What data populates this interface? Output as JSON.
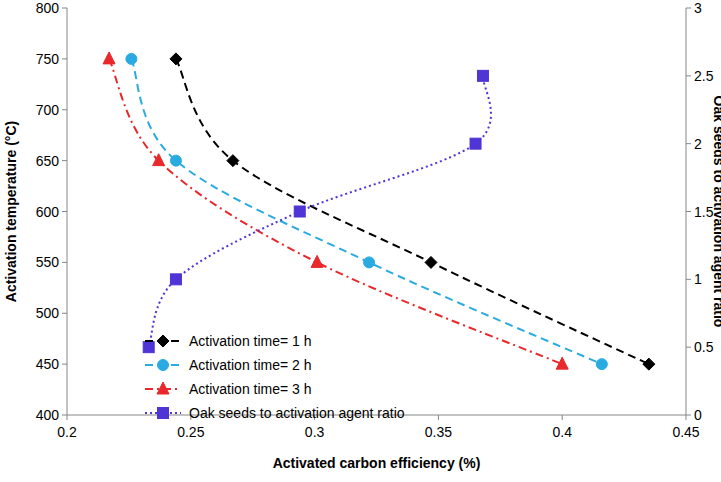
{
  "chart_data": {
    "type": "line",
    "xlabel": "Activated carbon efficiency (%)",
    "ylabel": "Activation temperature (°C)",
    "y2label": "Oak seeds to activation agent ratio",
    "xlim": [
      0.2,
      0.45
    ],
    "xticks": [
      0.2,
      0.25,
      0.3,
      0.35,
      0.4,
      0.45
    ],
    "ylim": [
      400,
      800
    ],
    "yticks": [
      400,
      450,
      500,
      550,
      600,
      650,
      700,
      750,
      800
    ],
    "y2lim": [
      0,
      3
    ],
    "y2ticks": [
      0,
      0.5,
      1,
      1.5,
      2,
      2.5,
      3
    ],
    "grid": false,
    "legend": "lower left",
    "series": [
      {
        "name": "Activation time= 1 h",
        "color": "#000000",
        "marker": "diamond",
        "line_style": "dashed",
        "x": [
          0.244,
          0.267,
          0.347,
          0.435
        ],
        "values": [
          750,
          650,
          550,
          450
        ]
      },
      {
        "name": "Activation time= 2 h",
        "color": "#29abe2",
        "marker": "circle",
        "line_style": "dashed",
        "x": [
          0.226,
          0.244,
          0.322,
          0.416
        ],
        "values": [
          750,
          650,
          550,
          450
        ]
      },
      {
        "name": "Activation time= 3 h",
        "color": "#e8282b",
        "marker": "triangle",
        "line_style": "dashdot",
        "x": [
          0.217,
          0.237,
          0.301,
          0.4
        ],
        "values": [
          750,
          650,
          550,
          450
        ]
      },
      {
        "name": "Oak seeds to activation agent ratio",
        "color": "#4f35d6",
        "marker": "square",
        "line_style": "dotted",
        "axis": "y2",
        "x": [
          0.233,
          0.244,
          0.294,
          0.365,
          0.368
        ],
        "values": [
          0.5,
          1,
          1.5,
          2,
          2.5
        ]
      }
    ]
  }
}
